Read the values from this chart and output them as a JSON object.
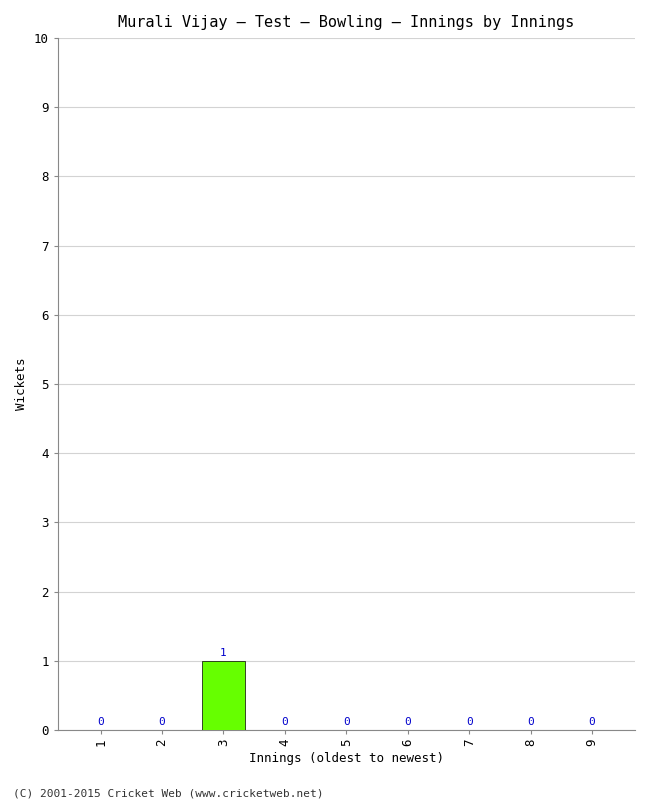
{
  "title": "Murali Vijay – Test – Bowling – Innings by Innings",
  "xlabel": "Innings (oldest to newest)",
  "ylabel": "Wickets",
  "x_values": [
    1,
    2,
    3,
    4,
    5,
    6,
    7,
    8,
    9
  ],
  "y_values": [
    0,
    0,
    1,
    0,
    0,
    0,
    0,
    0,
    0
  ],
  "bar_color": "#66ff00",
  "ylim": [
    0,
    10
  ],
  "yticks": [
    0,
    1,
    2,
    3,
    4,
    5,
    6,
    7,
    8,
    9,
    10
  ],
  "xticks": [
    1,
    2,
    3,
    4,
    5,
    6,
    7,
    8,
    9
  ],
  "background_color": "#ffffff",
  "plot_bg_color": "#ffffff",
  "grid_color": "#d3d3d3",
  "title_fontsize": 11,
  "axis_label_fontsize": 9,
  "tick_fontsize": 9,
  "annotation_fontsize": 8,
  "annotation_color": "#0000cc",
  "footer": "(C) 2001-2015 Cricket Web (www.cricketweb.net)",
  "footer_fontsize": 8,
  "font_family": "monospace"
}
